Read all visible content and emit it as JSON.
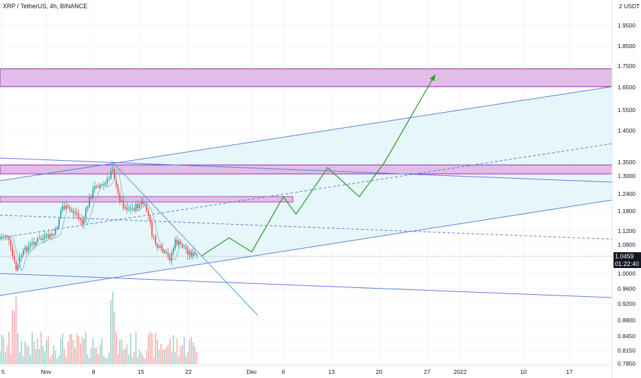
{
  "header": {
    "symbol_title": "XRP / TetherUS, 4h, BINANCE"
  },
  "price_axis": {
    "unit_label": "2 USDT",
    "last_price": "1.0459",
    "countdown": "01:22:40"
  },
  "colors": {
    "bull": "#26a69a",
    "bear": "#ef5350",
    "zone_fill": "#e1bee7",
    "zone_stroke": "#9c27b0",
    "channel_line": "#5b7bdc",
    "channel_fill": "#e0f4f8",
    "projection": "#2e9e2e",
    "downtrend": "#4a9fd8",
    "ma_line": "#7fc6c9"
  },
  "chart_data": {
    "type": "candlestick",
    "symbol": "XRP / TetherUS",
    "interval": "4h",
    "exchange": "BINANCE",
    "y_axis": {
      "ticks": [
        "1.9500",
        "1.8500",
        "1.7500",
        "1.6500",
        "1.5500",
        "1.4500",
        "1.3500",
        "1.3000",
        "1.2400",
        "1.1800",
        "1.1200",
        "1.0800",
        "1.0000",
        "0.9600",
        "0.9200",
        "0.8800",
        "0.8450",
        "0.8150",
        "0.7850"
      ]
    },
    "x_axis": {
      "ticks": [
        "5",
        "Nov",
        "8",
        "15",
        "22",
        "Dec",
        "6",
        "13",
        "20",
        "27",
        "2022",
        "10",
        "17"
      ]
    },
    "last_price": 1.0459,
    "resistance_zones": [
      {
        "from": 1.65,
        "to": 1.74
      },
      {
        "from": 1.31,
        "to": 1.34
      },
      {
        "from": 1.225,
        "to": 1.245
      }
    ],
    "projected_path": [
      {
        "date": "Nov 24",
        "price": 1.05
      },
      {
        "date": "Nov 28",
        "price": 1.1
      },
      {
        "date": "Dec 1",
        "price": 1.06
      },
      {
        "date": "Dec 6",
        "price": 1.23
      },
      {
        "date": "Dec 8",
        "price": 1.17
      },
      {
        "date": "Dec 13",
        "price": 1.33
      },
      {
        "date": "Dec 18",
        "price": 1.23
      },
      {
        "date": "Dec 22",
        "price": 1.35
      },
      {
        "date": "Dec 30",
        "price": 1.71
      }
    ]
  }
}
